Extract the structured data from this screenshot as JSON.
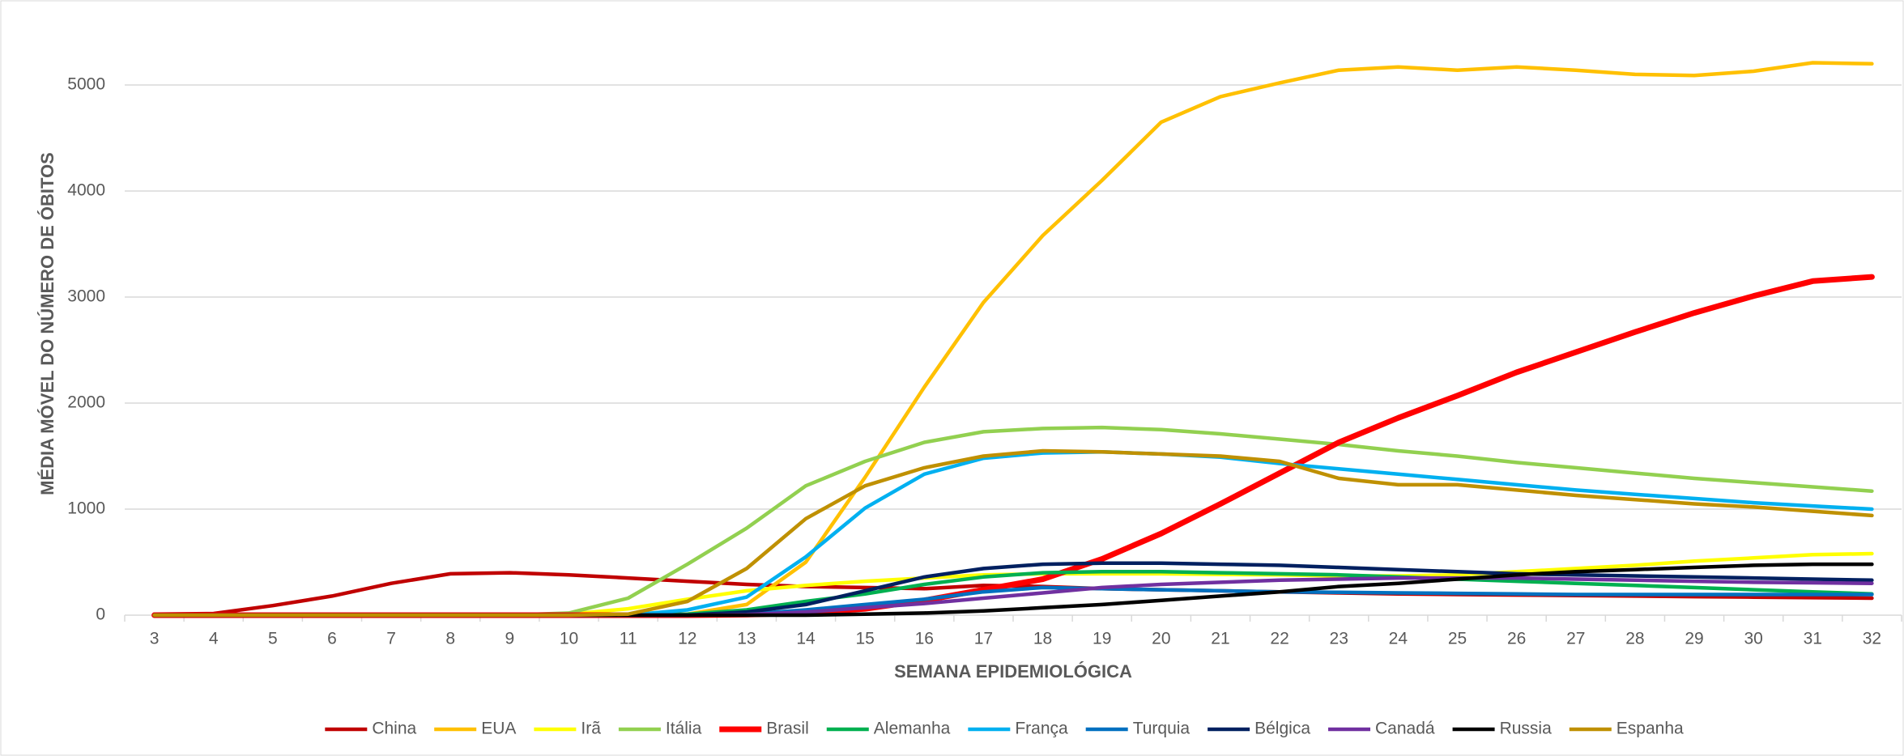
{
  "chart_data": {
    "type": "line",
    "xlabel": "SEMANA EPIDEMIOLÓGICA",
    "ylabel": "MÉDIA MÓVEL DO NÚMERO DE ÓBITOS",
    "categories": [
      "3",
      "4",
      "5",
      "6",
      "7",
      "8",
      "9",
      "10",
      "11",
      "12",
      "13",
      "14",
      "15",
      "16",
      "17",
      "18",
      "19",
      "20",
      "21",
      "22",
      "23",
      "24",
      "25",
      "26",
      "27",
      "28",
      "29",
      "30",
      "31",
      "32"
    ],
    "ylim": [
      0,
      5500
    ],
    "yticks": [
      0,
      1000,
      2000,
      3000,
      4000,
      5000
    ],
    "grid": true,
    "legend": "bottom",
    "series": [
      {
        "name": "China",
        "color": "#c00000",
        "line_width": 4.5,
        "values": [
          10,
          15,
          90,
          180,
          300,
          390,
          400,
          380,
          350,
          320,
          290,
          270,
          260,
          250,
          280,
          270,
          250,
          240,
          230,
          220,
          210,
          200,
          195,
          190,
          185,
          180,
          175,
          170,
          165,
          160
        ]
      },
      {
        "name": "EUA",
        "color": "#ffc000",
        "line_width": 4.5,
        "values": [
          0,
          0,
          0,
          0,
          0,
          0,
          0,
          0,
          0,
          10,
          100,
          500,
          1300,
          2150,
          2950,
          3580,
          4100,
          4650,
          4890,
          5020,
          5140,
          5170,
          5140,
          5170,
          5140,
          5100,
          5090,
          5130,
          5210,
          5200
        ]
      },
      {
        "name": "Irã",
        "color": "#ffff00",
        "line_width": 4.5,
        "values": [
          0,
          0,
          0,
          0,
          0,
          0,
          0,
          10,
          60,
          150,
          230,
          280,
          320,
          350,
          380,
          390,
          390,
          390,
          385,
          380,
          370,
          370,
          380,
          410,
          440,
          470,
          510,
          540,
          570,
          580
        ]
      },
      {
        "name": "Itália",
        "color": "#92d050",
        "line_width": 4.5,
        "values": [
          0,
          0,
          0,
          0,
          0,
          0,
          0,
          20,
          160,
          480,
          820,
          1220,
          1450,
          1630,
          1730,
          1760,
          1770,
          1750,
          1710,
          1660,
          1610,
          1550,
          1500,
          1440,
          1390,
          1340,
          1290,
          1250,
          1210,
          1170
        ]
      },
      {
        "name": "Brasil",
        "color": "#ff0000",
        "line_width": 7,
        "values": [
          0,
          0,
          0,
          0,
          0,
          0,
          0,
          0,
          0,
          0,
          5,
          20,
          60,
          140,
          240,
          340,
          530,
          770,
          1050,
          1340,
          1630,
          1860,
          2070,
          2290,
          2480,
          2670,
          2850,
          3010,
          3150,
          3190
        ]
      },
      {
        "name": "Alemanha",
        "color": "#00b050",
        "line_width": 4.5,
        "values": [
          0,
          0,
          0,
          0,
          0,
          0,
          0,
          0,
          0,
          10,
          50,
          130,
          200,
          290,
          360,
          400,
          410,
          410,
          400,
          390,
          380,
          360,
          340,
          320,
          300,
          280,
          260,
          240,
          220,
          200
        ]
      },
      {
        "name": "França",
        "color": "#00b0f0",
        "line_width": 4.5,
        "values": [
          0,
          0,
          0,
          0,
          0,
          0,
          0,
          0,
          0,
          50,
          170,
          550,
          1010,
          1330,
          1480,
          1530,
          1540,
          1520,
          1490,
          1430,
          1380,
          1330,
          1280,
          1230,
          1180,
          1140,
          1100,
          1060,
          1030,
          1000
        ]
      },
      {
        "name": "Turquia",
        "color": "#0070c0",
        "line_width": 4.5,
        "values": [
          0,
          0,
          0,
          0,
          0,
          0,
          0,
          0,
          0,
          0,
          10,
          50,
          100,
          150,
          220,
          260,
          250,
          240,
          230,
          220,
          215,
          210,
          205,
          200,
          195,
          195,
          195,
          195,
          195,
          195
        ]
      },
      {
        "name": "Bélgica",
        "color": "#002060",
        "line_width": 4.5,
        "values": [
          0,
          0,
          0,
          0,
          0,
          0,
          0,
          0,
          0,
          0,
          30,
          100,
          230,
          360,
          440,
          480,
          490,
          490,
          480,
          470,
          450,
          430,
          410,
          390,
          380,
          370,
          360,
          350,
          340,
          330
        ]
      },
      {
        "name": "Canadá",
        "color": "#7030a0",
        "line_width": 4.5,
        "values": [
          0,
          0,
          0,
          0,
          0,
          0,
          0,
          0,
          0,
          0,
          5,
          30,
          70,
          110,
          160,
          210,
          260,
          290,
          310,
          330,
          340,
          350,
          350,
          350,
          340,
          330,
          320,
          310,
          305,
          300
        ]
      },
      {
        "name": "Russia",
        "color": "#000000",
        "line_width": 4.5,
        "values": [
          0,
          0,
          0,
          0,
          0,
          0,
          0,
          0,
          0,
          0,
          0,
          0,
          10,
          20,
          40,
          70,
          100,
          140,
          180,
          220,
          270,
          300,
          340,
          380,
          410,
          430,
          450,
          470,
          480,
          480
        ]
      },
      {
        "name": "Espanha",
        "color": "#bf9000",
        "line_width": 4.5,
        "values": [
          0,
          0,
          0,
          0,
          0,
          0,
          0,
          0,
          10,
          130,
          440,
          910,
          1220,
          1390,
          1500,
          1550,
          1540,
          1520,
          1500,
          1450,
          1290,
          1230,
          1230,
          1180,
          1130,
          1090,
          1050,
          1020,
          980,
          940
        ]
      }
    ]
  }
}
